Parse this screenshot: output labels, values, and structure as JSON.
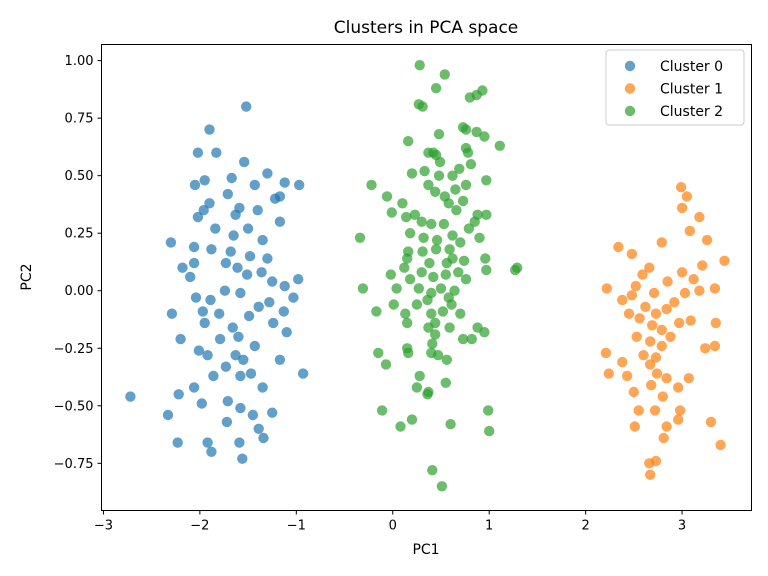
{
  "chart_data": {
    "type": "scatter",
    "title": "Clusters in PCA space",
    "xlabel": "PC1",
    "ylabel": "PC2",
    "xlim": [
      -3.02,
      3.72
    ],
    "ylim": [
      -0.955,
      1.07
    ],
    "xticks": [
      -3,
      -2,
      -1,
      0,
      1,
      2,
      3
    ],
    "xtick_labels": [
      "−3",
      "−2",
      "−1",
      "0",
      "1",
      "2",
      "3"
    ],
    "yticks": [
      -0.75,
      -0.5,
      -0.25,
      0.0,
      0.25,
      0.5,
      0.75,
      1.0
    ],
    "ytick_labels": [
      "−0.75",
      "−0.50",
      "−0.25",
      "0.00",
      "0.25",
      "0.50",
      "0.75",
      "1.00"
    ],
    "grid": false,
    "legend_position": "top-right",
    "series": [
      {
        "name": "Cluster 0",
        "color": "#1f77b4",
        "points": [
          [
            -1.52,
            0.8
          ],
          [
            -1.9,
            0.7
          ],
          [
            -1.83,
            0.6
          ],
          [
            -2.02,
            0.6
          ],
          [
            -1.67,
            0.49
          ],
          [
            -1.95,
            0.48
          ],
          [
            -2.05,
            0.46
          ],
          [
            -1.43,
            0.46
          ],
          [
            -1.12,
            0.47
          ],
          [
            -0.97,
            0.46
          ],
          [
            -1.54,
            0.56
          ],
          [
            -1.3,
            0.51
          ],
          [
            -1.17,
            0.41
          ],
          [
            -1.71,
            0.42
          ],
          [
            -1.9,
            0.38
          ],
          [
            -1.96,
            0.35
          ],
          [
            -2.02,
            0.32
          ],
          [
            -1.59,
            0.36
          ],
          [
            -1.63,
            0.33
          ],
          [
            -1.4,
            0.35
          ],
          [
            -1.5,
            0.27
          ],
          [
            -2.3,
            0.21
          ],
          [
            -2.06,
            0.19
          ],
          [
            -1.65,
            0.24
          ],
          [
            -1.68,
            0.17
          ],
          [
            -2.18,
            0.1
          ],
          [
            -2.1,
            0.06
          ],
          [
            -1.88,
            0.18
          ],
          [
            -1.73,
            0.12
          ],
          [
            -1.61,
            0.1
          ],
          [
            -1.48,
            0.15
          ],
          [
            -1.36,
            0.08
          ],
          [
            -1.25,
            0.04
          ],
          [
            -1.12,
            0.02
          ],
          [
            -0.98,
            0.05
          ],
          [
            -1.03,
            -0.03
          ],
          [
            -1.28,
            -0.05
          ],
          [
            -1.58,
            -0.01
          ],
          [
            -1.74,
            0.0
          ],
          [
            -1.89,
            -0.04
          ],
          [
            -2.04,
            -0.03
          ],
          [
            -2.29,
            -0.1
          ],
          [
            -1.95,
            -0.14
          ],
          [
            -1.8,
            -0.1
          ],
          [
            -1.66,
            -0.16
          ],
          [
            -1.49,
            -0.11
          ],
          [
            -1.39,
            -0.07
          ],
          [
            -1.24,
            -0.14
          ],
          [
            -1.1,
            -0.18
          ],
          [
            -2.01,
            -0.26
          ],
          [
            -1.92,
            -0.28
          ],
          [
            -1.79,
            -0.21
          ],
          [
            -1.63,
            -0.28
          ],
          [
            -1.55,
            -0.3
          ],
          [
            -1.43,
            -0.24
          ],
          [
            -2.2,
            -0.21
          ],
          [
            -2.22,
            -0.45
          ],
          [
            -2.06,
            -0.42
          ],
          [
            -1.86,
            -0.37
          ],
          [
            -1.73,
            -0.33
          ],
          [
            -1.58,
            -0.37
          ],
          [
            -1.47,
            -0.36
          ],
          [
            -1.35,
            -0.42
          ],
          [
            -1.17,
            -0.3
          ],
          [
            -0.93,
            -0.36
          ],
          [
            -2.72,
            -0.46
          ],
          [
            -2.33,
            -0.54
          ],
          [
            -1.98,
            -0.49
          ],
          [
            -1.71,
            -0.48
          ],
          [
            -1.58,
            -0.51
          ],
          [
            -1.45,
            -0.54
          ],
          [
            -1.25,
            -0.53
          ],
          [
            -2.23,
            -0.66
          ],
          [
            -1.92,
            -0.66
          ],
          [
            -1.88,
            -0.7
          ],
          [
            -1.59,
            -0.66
          ],
          [
            -1.39,
            -0.6
          ],
          [
            -1.56,
            -0.73
          ],
          [
            -1.34,
            -0.64
          ],
          [
            -1.72,
            -0.57
          ],
          [
            -1.22,
            0.4
          ],
          [
            -2.06,
            0.12
          ],
          [
            -1.35,
            0.22
          ],
          [
            -1.17,
            0.3
          ],
          [
            -1.51,
            0.07
          ],
          [
            -1.84,
            0.27
          ],
          [
            -1.97,
            -0.09
          ],
          [
            -1.13,
            -0.09
          ],
          [
            -1.3,
            0.14
          ],
          [
            -1.6,
            -0.2
          ]
        ]
      },
      {
        "name": "Cluster 1",
        "color": "#ff7f0e",
        "points": [
          [
            2.99,
            0.45
          ],
          [
            3.05,
            0.41
          ],
          [
            3.0,
            0.36
          ],
          [
            3.18,
            0.32
          ],
          [
            3.08,
            0.26
          ],
          [
            3.26,
            0.22
          ],
          [
            2.34,
            0.19
          ],
          [
            2.48,
            0.16
          ],
          [
            2.79,
            0.21
          ],
          [
            2.66,
            0.1
          ],
          [
            2.59,
            0.07
          ],
          [
            3.44,
            0.13
          ],
          [
            3.21,
            0.11
          ],
          [
            3.0,
            0.08
          ],
          [
            3.12,
            0.05
          ],
          [
            2.85,
            0.04
          ],
          [
            2.71,
            -0.01
          ],
          [
            2.52,
            0.02
          ],
          [
            2.22,
            0.01
          ],
          [
            3.18,
            0.0
          ],
          [
            3.34,
            0.01
          ],
          [
            3.03,
            -0.01
          ],
          [
            2.38,
            -0.04
          ],
          [
            2.48,
            -0.02
          ],
          [
            2.62,
            -0.07
          ],
          [
            2.73,
            -0.1
          ],
          [
            2.84,
            -0.08
          ],
          [
            2.92,
            -0.05
          ],
          [
            2.45,
            -0.1
          ],
          [
            2.56,
            -0.12
          ],
          [
            2.69,
            -0.15
          ],
          [
            2.79,
            -0.17
          ],
          [
            2.97,
            -0.14
          ],
          [
            3.09,
            -0.13
          ],
          [
            3.35,
            -0.14
          ],
          [
            2.88,
            -0.2
          ],
          [
            2.67,
            -0.22
          ],
          [
            2.53,
            -0.2
          ],
          [
            2.6,
            -0.28
          ],
          [
            2.73,
            -0.29
          ],
          [
            2.79,
            -0.24
          ],
          [
            3.24,
            -0.25
          ],
          [
            3.34,
            -0.24
          ],
          [
            2.21,
            -0.27
          ],
          [
            2.38,
            -0.31
          ],
          [
            2.24,
            -0.36
          ],
          [
            2.43,
            -0.37
          ],
          [
            2.67,
            -0.32
          ],
          [
            2.74,
            -0.36
          ],
          [
            2.84,
            -0.38
          ],
          [
            3.07,
            -0.38
          ],
          [
            2.68,
            -0.41
          ],
          [
            2.96,
            -0.42
          ],
          [
            2.5,
            -0.44
          ],
          [
            2.8,
            -0.46
          ],
          [
            2.55,
            -0.52
          ],
          [
            2.72,
            -0.52
          ],
          [
            2.98,
            -0.52
          ],
          [
            2.84,
            -0.59
          ],
          [
            3.3,
            -0.57
          ],
          [
            2.51,
            -0.59
          ],
          [
            2.96,
            -0.56
          ],
          [
            3.4,
            -0.67
          ],
          [
            2.81,
            -0.64
          ],
          [
            2.66,
            -0.75
          ],
          [
            2.73,
            -0.74
          ],
          [
            2.67,
            -0.8
          ]
        ]
      },
      {
        "name": "Cluster 2",
        "color": "#2ca02c",
        "points": [
          [
            0.28,
            0.98
          ],
          [
            0.54,
            0.94
          ],
          [
            0.45,
            0.88
          ],
          [
            0.87,
            0.85
          ],
          [
            0.93,
            0.87
          ],
          [
            0.8,
            0.84
          ],
          [
            0.27,
            0.81
          ],
          [
            0.31,
            0.8
          ],
          [
            0.73,
            0.71
          ],
          [
            0.76,
            0.7
          ],
          [
            0.87,
            0.69
          ],
          [
            0.48,
            0.68
          ],
          [
            0.76,
            0.62
          ],
          [
            0.95,
            0.67
          ],
          [
            1.11,
            0.63
          ],
          [
            0.16,
            0.65
          ],
          [
            0.42,
            0.6
          ],
          [
            0.49,
            0.56
          ],
          [
            0.37,
            0.6
          ],
          [
            0.45,
            0.59
          ],
          [
            0.78,
            0.6
          ],
          [
            0.81,
            0.55
          ],
          [
            0.69,
            0.53
          ],
          [
            0.33,
            0.52
          ],
          [
            0.48,
            0.5
          ],
          [
            0.62,
            0.5
          ],
          [
            0.97,
            0.48
          ],
          [
            0.76,
            0.46
          ],
          [
            0.2,
            0.51
          ],
          [
            -0.22,
            0.46
          ],
          [
            -0.06,
            0.41
          ],
          [
            0.37,
            0.46
          ],
          [
            0.44,
            0.43
          ],
          [
            0.54,
            0.41
          ],
          [
            0.65,
            0.44
          ],
          [
            0.1,
            0.38
          ],
          [
            0.58,
            0.38
          ],
          [
            0.73,
            0.39
          ],
          [
            0.66,
            0.35
          ],
          [
            0.88,
            0.33
          ],
          [
            0.97,
            0.33
          ],
          [
            0.23,
            0.33
          ],
          [
            0.14,
            0.32
          ],
          [
            -0.01,
            0.34
          ],
          [
            0.3,
            0.3
          ],
          [
            0.4,
            0.29
          ],
          [
            0.53,
            0.29
          ],
          [
            0.85,
            0.3
          ],
          [
            0.79,
            0.27
          ],
          [
            0.62,
            0.24
          ],
          [
            0.18,
            0.25
          ],
          [
            0.32,
            0.23
          ],
          [
            0.46,
            0.22
          ],
          [
            0.9,
            0.23
          ],
          [
            -0.34,
            0.23
          ],
          [
            0.7,
            0.21
          ],
          [
            0.59,
            0.18
          ],
          [
            0.45,
            0.18
          ],
          [
            0.31,
            0.17
          ],
          [
            0.16,
            0.17
          ],
          [
            0.38,
            0.12
          ],
          [
            0.56,
            0.12
          ],
          [
            0.62,
            0.14
          ],
          [
            0.74,
            0.13
          ],
          [
            0.96,
            0.14
          ],
          [
            0.15,
            0.14
          ],
          [
            0.97,
            0.09
          ],
          [
            0.12,
            0.1
          ],
          [
            0.3,
            0.08
          ],
          [
            0.42,
            0.06
          ],
          [
            0.55,
            0.07
          ],
          [
            0.68,
            0.08
          ],
          [
            0.76,
            0.05
          ],
          [
            -0.02,
            0.07
          ],
          [
            0.18,
            0.05
          ],
          [
            1.29,
            0.1
          ],
          [
            1.27,
            0.09
          ],
          [
            -0.31,
            0.01
          ],
          [
            0.04,
            0.01
          ],
          [
            0.27,
            0.01
          ],
          [
            0.5,
            0.01
          ],
          [
            0.64,
            0.0
          ],
          [
            0.4,
            -0.01
          ],
          [
            0.58,
            -0.03
          ],
          [
            0.36,
            -0.04
          ],
          [
            0.25,
            -0.06
          ],
          [
            0.61,
            -0.06
          ],
          [
            0.52,
            -0.09
          ],
          [
            0.01,
            -0.06
          ],
          [
            0.13,
            -0.1
          ],
          [
            -0.17,
            -0.09
          ],
          [
            0.4,
            -0.1
          ],
          [
            0.7,
            -0.1
          ],
          [
            0.44,
            -0.14
          ],
          [
            0.37,
            -0.16
          ],
          [
            0.15,
            -0.14
          ],
          [
            0.59,
            -0.16
          ],
          [
            0.88,
            -0.16
          ],
          [
            0.95,
            -0.18
          ],
          [
            0.44,
            -0.19
          ],
          [
            0.73,
            -0.21
          ],
          [
            0.82,
            -0.21
          ],
          [
            0.41,
            -0.23
          ],
          [
            -0.15,
            -0.27
          ],
          [
            0.15,
            -0.25
          ],
          [
            0.16,
            -0.27
          ],
          [
            0.4,
            -0.27
          ],
          [
            0.47,
            -0.28
          ],
          [
            -0.07,
            -0.32
          ],
          [
            0.56,
            -0.3
          ],
          [
            0.28,
            -0.37
          ],
          [
            0.55,
            -0.4
          ],
          [
            0.25,
            -0.42
          ],
          [
            0.37,
            -0.44
          ],
          [
            0.36,
            -0.45
          ],
          [
            0.99,
            -0.52
          ],
          [
            -0.11,
            -0.52
          ],
          [
            0.2,
            -0.56
          ],
          [
            0.6,
            -0.58
          ],
          [
            0.08,
            -0.59
          ],
          [
            1.0,
            -0.61
          ],
          [
            0.41,
            -0.78
          ],
          [
            0.51,
            -0.85
          ]
        ]
      }
    ]
  }
}
